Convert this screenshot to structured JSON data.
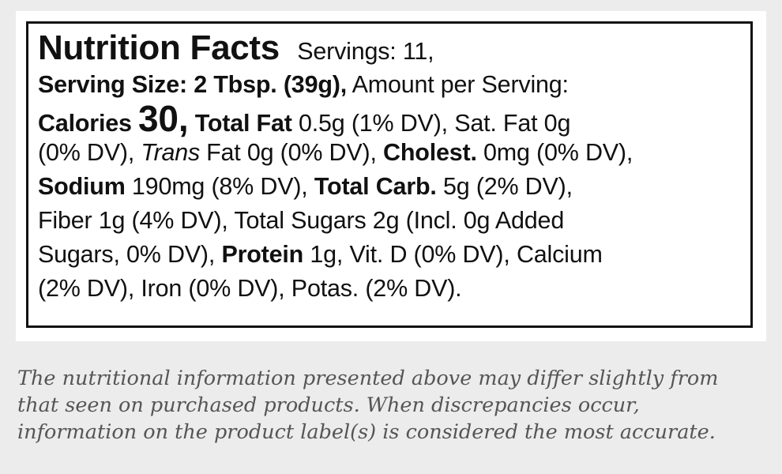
{
  "label": {
    "title": "Nutrition Facts",
    "servings": "Servings: 11,",
    "serving_size": "Serving Size: 2 Tbsp. (39g),",
    "amount_per_serving": "Amount per Serving:",
    "calories_label": "Calories",
    "calories_value": "30,",
    "total_fat_label": "Total Fat",
    "total_fat_value": "0.5g (1% DV), Sat. Fat 0g",
    "line4_a": "(0% DV),",
    "trans_label": "Trans",
    "line4_b": "Fat 0g (0% DV),",
    "cholest_label": "Cholest.",
    "cholest_value": "0mg (0% DV),",
    "sodium_label": "Sodium",
    "sodium_value": "190mg (8% DV),",
    "carb_label": "Total Carb.",
    "carb_value": "5g (2% DV),",
    "line6": "Fiber 1g (4% DV), Total Sugars 2g (Incl. 0g Added",
    "line7_a": "Sugars, 0% DV),",
    "protein_label": "Protein",
    "line7_b": "1g, Vit. D (0% DV), Calcium",
    "line8": "(2% DV), Iron (0% DV), Potas. (2% DV)."
  },
  "disclaimer": {
    "line1": "The nutritional information presented above may differ slightly from",
    "line2": "that seen on purchased products. When discrepancies occur,",
    "line3": "information on the product label(s) is considered the most accurate."
  }
}
